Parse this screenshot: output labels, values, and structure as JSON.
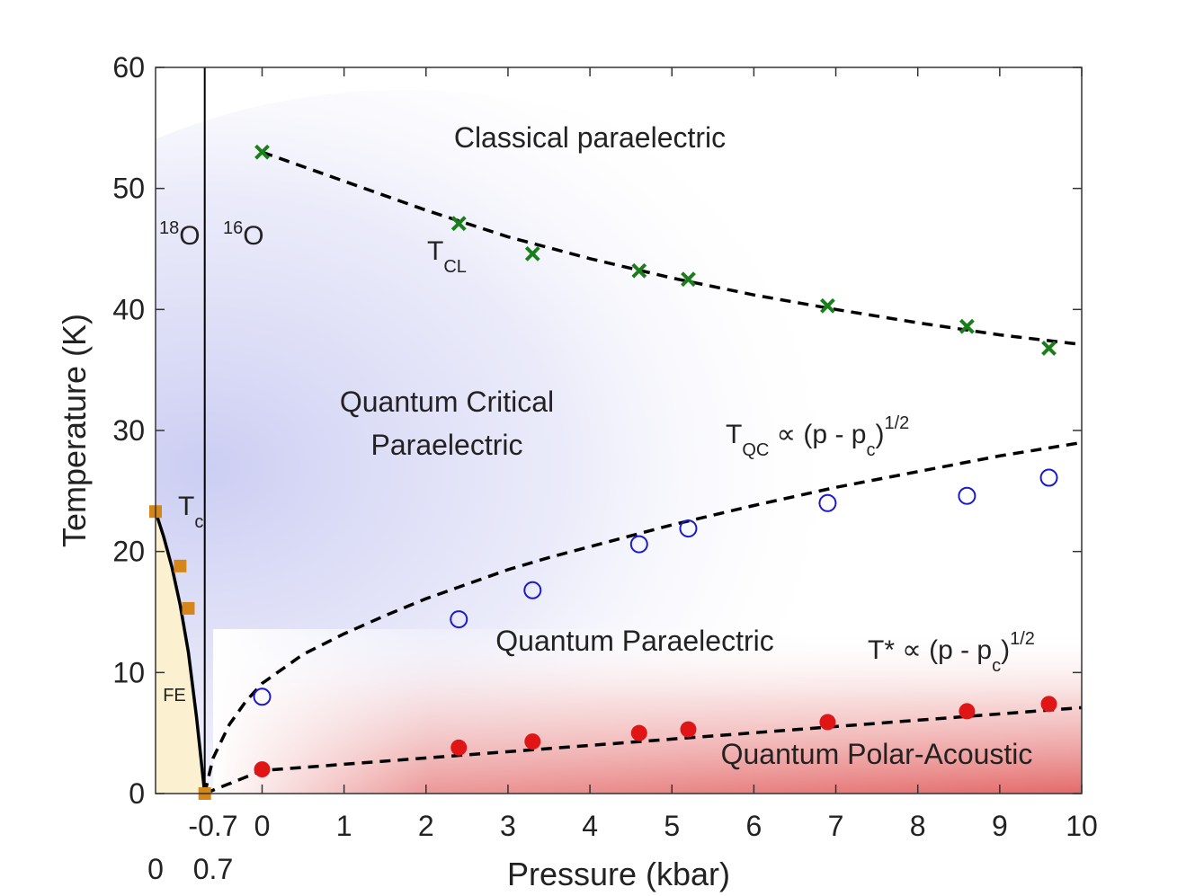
{
  "chart_data": {
    "type": "scatter",
    "title": "",
    "xlabel": "Pressure (kbar)",
    "ylabel": "Temperature (K)",
    "xlim": [
      -1.3,
      10
    ],
    "ylim": [
      0,
      60
    ],
    "x_ticks": [
      0,
      1,
      2,
      3,
      4,
      5,
      6,
      7,
      8,
      9,
      10
    ],
    "y_ticks": [
      0,
      10,
      20,
      30,
      40,
      50,
      60
    ],
    "extra_x_tick_label": "-0.7",
    "secondary_x_ticks": [
      "0",
      "0.7"
    ],
    "isotope_divider_x": -0.7,
    "isotope_labels": {
      "left": "18O",
      "right": "16O",
      "left_mass": "18",
      "right_mass": "16",
      "element": "O"
    },
    "regions": {
      "classical": "Classical paraelectric",
      "quantum_critical_1": "Quantum Critical",
      "quantum_critical_2": "Paraelectric",
      "quantum_paraelectric": "Quantum Paraelectric",
      "polar_acoustic": "Quantum Polar-Acoustic",
      "ferroelectric": "FE"
    },
    "annotations": {
      "tc": {
        "main": "T",
        "sub": "c"
      },
      "tcl": {
        "main": "T",
        "sub": "CL"
      },
      "tqc": {
        "main": "T",
        "sub": "QC",
        "rel": " ∝ (p - p",
        "rel_sub": "c",
        "rel_close": ")",
        "power": "1/2"
      },
      "tstar": {
        "main": "T*",
        "rel": " ∝ (p - p",
        "rel_sub": "c",
        "rel_close": ")",
        "power": "1/2"
      }
    },
    "series": [
      {
        "marker": "x",
        "color": "#1a7f1a",
        "points": [
          [
            0,
            53
          ],
          [
            2.4,
            47.1
          ],
          [
            3.3,
            44.6
          ],
          [
            4.6,
            43.2
          ],
          [
            5.2,
            42.5
          ],
          [
            6.9,
            40.3
          ],
          [
            8.6,
            38.6
          ],
          [
            9.6,
            36.8
          ]
        ]
      },
      {
        "marker": "open-circle",
        "color": "#1a1acc",
        "points": [
          [
            0,
            8
          ],
          [
            2.4,
            14.4
          ],
          [
            3.3,
            16.8
          ],
          [
            4.6,
            20.6
          ],
          [
            5.2,
            21.9
          ],
          [
            6.9,
            24
          ],
          [
            8.6,
            24.6
          ],
          [
            9.6,
            26.1
          ]
        ]
      },
      {
        "marker": "filled-circle",
        "color": "#e01515",
        "points": [
          [
            0,
            2
          ],
          [
            2.4,
            3.8
          ],
          [
            3.3,
            4.3
          ],
          [
            4.6,
            5
          ],
          [
            5.2,
            5.3
          ],
          [
            6.9,
            5.9
          ],
          [
            8.6,
            6.8
          ],
          [
            9.6,
            7.4
          ]
        ]
      },
      {
        "marker": "square",
        "color": "#d4861a",
        "points": [
          [
            -1.3,
            23.3
          ],
          [
            -1.0,
            18.8
          ],
          [
            -0.9,
            15.3
          ],
          [
            -0.7,
            0
          ]
        ]
      }
    ],
    "fits": [
      {
        "style": "dashed",
        "points": [
          [
            0,
            53
          ],
          [
            1,
            50.6
          ],
          [
            2,
            48.2
          ],
          [
            3,
            46
          ],
          [
            4,
            44.2
          ],
          [
            5,
            42.6
          ],
          [
            6,
            41.2
          ],
          [
            7,
            40
          ],
          [
            8,
            38.9
          ],
          [
            9,
            37.9
          ],
          [
            10,
            37.1
          ]
        ]
      },
      {
        "style": "dashed",
        "points": [
          [
            -0.7,
            0
          ],
          [
            -0.6,
            2.9
          ],
          [
            -0.4,
            5.7
          ],
          [
            -0.2,
            7.6
          ],
          [
            0,
            9.1
          ],
          [
            0.5,
            11.5
          ],
          [
            1,
            13.2
          ],
          [
            1.5,
            14.7
          ],
          [
            2,
            16.1
          ],
          [
            2.5,
            17.3
          ],
          [
            3,
            18.5
          ],
          [
            3.5,
            19.5
          ],
          [
            4,
            20.4
          ],
          [
            5,
            22.2
          ],
          [
            6,
            23.8
          ],
          [
            7,
            25.3
          ],
          [
            8,
            26.6
          ],
          [
            9,
            27.9
          ],
          [
            10,
            29
          ]
        ]
      },
      {
        "style": "dashed",
        "points": [
          [
            -0.7,
            0
          ],
          [
            0,
            1.9
          ],
          [
            10,
            7.1
          ]
        ]
      },
      {
        "style": "solid",
        "points": [
          [
            -1.3,
            23.3
          ],
          [
            -1.2,
            21.2
          ],
          [
            -1.1,
            18.7
          ],
          [
            -1.0,
            15.6
          ],
          [
            -0.9,
            11.7
          ],
          [
            -0.8,
            6.3
          ],
          [
            -0.7,
            0
          ]
        ]
      }
    ]
  }
}
